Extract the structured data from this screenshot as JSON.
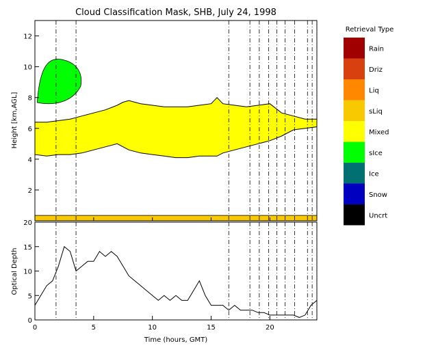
{
  "chart_data": [
    {
      "type": "heatmap",
      "title": "Cloud Classification Mask, SHB, July 24, 1998",
      "ylabel": "Height [km,AGL]",
      "xlim": [
        0,
        24
      ],
      "ylim": [
        0,
        13
      ],
      "xticks": [
        0,
        5,
        10,
        15,
        20
      ],
      "yticks": [
        2,
        4,
        6,
        8,
        10,
        12
      ],
      "legend_title": "Retrieval Type",
      "legend_position": "right",
      "legend": [
        {
          "label": "Rain",
          "color": "#a00000"
        },
        {
          "label": "Driz",
          "color": "#d84010"
        },
        {
          "label": "Liq",
          "color": "#ff8800"
        },
        {
          "label": "sLiq",
          "color": "#f8c800"
        },
        {
          "label": "Mixed",
          "color": "#ffff00"
        },
        {
          "label": "sIce",
          "color": "#00ff00"
        },
        {
          "label": "Ice",
          "color": "#007070"
        },
        {
          "label": "Snow",
          "color": "#0000c0"
        },
        {
          "label": "Uncrt",
          "color": "#000000"
        }
      ],
      "mixed_layer": {
        "x": [
          0,
          1,
          2,
          3,
          4,
          5,
          6,
          7,
          7.5,
          8,
          9,
          10,
          11,
          12,
          13,
          14,
          15,
          15.5,
          16,
          17,
          18,
          19,
          20,
          21,
          22,
          23,
          24
        ],
        "top": [
          6.4,
          6.4,
          6.5,
          6.6,
          6.8,
          7.0,
          7.2,
          7.5,
          7.7,
          7.8,
          7.6,
          7.5,
          7.4,
          7.4,
          7.4,
          7.5,
          7.6,
          8.0,
          7.6,
          7.5,
          7.4,
          7.5,
          7.6,
          7.0,
          6.8,
          6.6,
          6.6
        ],
        "bottom": [
          4.3,
          4.2,
          4.3,
          4.3,
          4.4,
          4.6,
          4.8,
          5.0,
          4.8,
          4.6,
          4.4,
          4.3,
          4.2,
          4.1,
          4.1,
          4.2,
          4.2,
          4.2,
          4.4,
          4.6,
          4.8,
          5.0,
          5.2,
          5.5,
          5.9,
          6.0,
          6.1
        ]
      },
      "ice_region": {
        "x_start": 0.2,
        "x_end": 3.9,
        "bottom": 7.5,
        "top": 10.6,
        "label": "sIce"
      },
      "surface_layer": {
        "x_start": 0,
        "x_end": 24,
        "bottom": 0.0,
        "top": 0.35,
        "label": "sLiq"
      },
      "vertical_lines": [
        1.8,
        3.5,
        16.5,
        18.3,
        19.1,
        19.9,
        20.6,
        21.3,
        22.1,
        23.2,
        23.6
      ]
    },
    {
      "type": "line",
      "xlabel": "Time (hours, GMT)",
      "ylabel": "Optical Depth",
      "xlim": [
        0,
        24
      ],
      "ylim": [
        0,
        20
      ],
      "xticks": [
        0,
        5,
        10,
        15,
        20
      ],
      "yticks": [
        0,
        5,
        10,
        15,
        20
      ],
      "series": [
        {
          "x": [
            0,
            0.5,
            1,
            1.5,
            2,
            2.5,
            3,
            3.5,
            4,
            4.5,
            5,
            5.5,
            6,
            6.5,
            7,
            7.5,
            8,
            8.5,
            9,
            9.5,
            10,
            10.5,
            11,
            11.5,
            12,
            12.5,
            13,
            13.5,
            14,
            14.5,
            15,
            15.5,
            16,
            16.5,
            17,
            17.5,
            18,
            18.5,
            19,
            19.5,
            20,
            20.5,
            21,
            21.5,
            22,
            22.5,
            23,
            23.5,
            24
          ],
          "y": [
            3,
            5,
            7,
            8,
            11,
            15,
            14,
            10,
            11,
            12,
            12,
            14,
            13,
            14,
            13,
            11,
            9,
            8,
            7,
            6,
            5,
            4,
            5,
            4,
            5,
            4,
            4,
            6,
            8,
            5,
            3,
            3,
            3,
            2,
            3,
            2,
            2,
            2,
            1.5,
            1.5,
            1,
            1,
            1,
            1,
            1,
            0.5,
            1,
            3,
            4
          ]
        }
      ]
    }
  ]
}
